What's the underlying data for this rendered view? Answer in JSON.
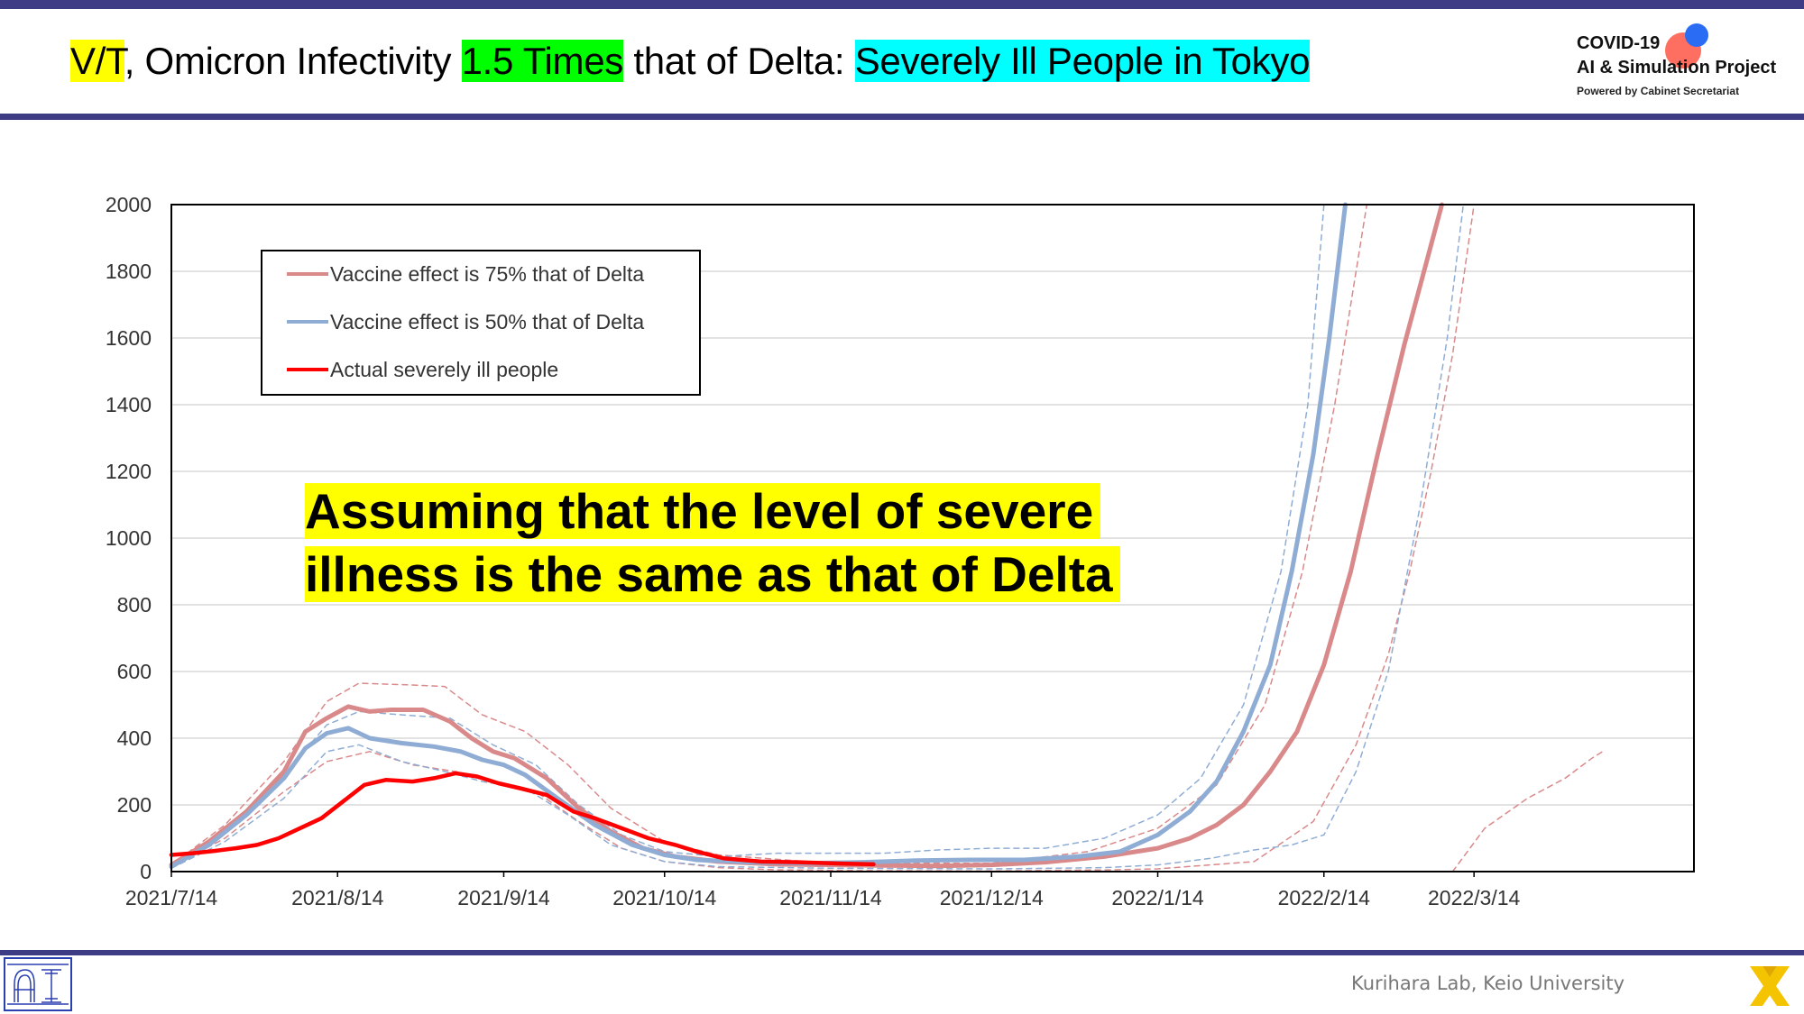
{
  "header": {
    "title_part1": "V/T",
    "title_part2": ", Omicron Infectivity ",
    "title_part3": "1.5 Times",
    "title_part4": " that of Delta: ",
    "title_part5": "Severely Ill People in Tokyo"
  },
  "logo": {
    "line1": "COVID-19",
    "line2": "AI & Simulation Project",
    "line3": "Powered by Cabinet Secretariat"
  },
  "footer": {
    "credit": "Kurihara Lab, Keio University"
  },
  "callout": {
    "line1": "Assuming that the level of severe",
    "line2": "illness is the same as that of Delta"
  },
  "colors": {
    "brand_band": "#3f3c86",
    "series_75": "#d9898a",
    "series_50": "#8fadd4",
    "series_actual": "#ff0000",
    "highlight_yellow": "#ffff00",
    "highlight_green": "#00ff00",
    "highlight_cyan": "#00ffff"
  },
  "chart_data": {
    "type": "line",
    "xlabel": "",
    "ylabel": "",
    "x_ticks": [
      "2021/7/14",
      "2021/8/14",
      "2021/9/14",
      "2021/10/14",
      "2021/11/14",
      "2021/12/14",
      "2022/1/14",
      "2022/2/14",
      "2022/3/14"
    ],
    "ylim": [
      0,
      2000
    ],
    "y_ticks": [
      0,
      200,
      400,
      600,
      800,
      1000,
      1200,
      1400,
      1600,
      1800,
      2000
    ],
    "grid": "horizontal",
    "legend_position": "top-left",
    "series": [
      {
        "name": "Vaccine effect is 75% that of Delta",
        "style": "solid",
        "points": [
          [
            "2021/7/14",
            20
          ],
          [
            "2021/7/21",
            90
          ],
          [
            "2021/7/28",
            180
          ],
          [
            "2021/8/4",
            300
          ],
          [
            "2021/8/8",
            420
          ],
          [
            "2021/8/12",
            460
          ],
          [
            "2021/8/16",
            495
          ],
          [
            "2021/8/20",
            480
          ],
          [
            "2021/8/24",
            485
          ],
          [
            "2021/8/30",
            485
          ],
          [
            "2021/9/4",
            450
          ],
          [
            "2021/9/8",
            400
          ],
          [
            "2021/9/12",
            360
          ],
          [
            "2021/9/16",
            340
          ],
          [
            "2021/9/22",
            280
          ],
          [
            "2021/9/28",
            190
          ],
          [
            "2021/10/4",
            120
          ],
          [
            "2021/10/10",
            70
          ],
          [
            "2021/10/16",
            45
          ],
          [
            "2021/10/24",
            30
          ],
          [
            "2021/11/4",
            22
          ],
          [
            "2021/11/14",
            20
          ],
          [
            "2021/11/24",
            18
          ],
          [
            "2021/12/4",
            17
          ],
          [
            "2021/12/14",
            20
          ],
          [
            "2021/12/24",
            28
          ],
          [
            "2022/1/4",
            45
          ],
          [
            "2022/1/14",
            70
          ],
          [
            "2022/1/20",
            100
          ],
          [
            "2022/1/25",
            140
          ],
          [
            "2022/1/30",
            200
          ],
          [
            "2022/2/4",
            300
          ],
          [
            "2022/2/9",
            420
          ],
          [
            "2022/2/14",
            620
          ],
          [
            "2022/2/19",
            900
          ],
          [
            "2022/2/24",
            1250
          ],
          [
            "2022/3/1",
            1580
          ],
          [
            "2022/3/5",
            1820
          ],
          [
            "2022/3/8",
            2000
          ]
        ]
      },
      {
        "name": "Vaccine effect is 50% that of Delta",
        "style": "solid",
        "points": [
          [
            "2021/7/14",
            15
          ],
          [
            "2021/7/21",
            80
          ],
          [
            "2021/7/28",
            170
          ],
          [
            "2021/8/4",
            280
          ],
          [
            "2021/8/8",
            370
          ],
          [
            "2021/8/12",
            415
          ],
          [
            "2021/8/16",
            430
          ],
          [
            "2021/8/20",
            400
          ],
          [
            "2021/8/26",
            385
          ],
          [
            "2021/9/1",
            375
          ],
          [
            "2021/9/6",
            360
          ],
          [
            "2021/9/10",
            335
          ],
          [
            "2021/9/14",
            320
          ],
          [
            "2021/9/18",
            290
          ],
          [
            "2021/9/24",
            220
          ],
          [
            "2021/10/1",
            140
          ],
          [
            "2021/10/8",
            80
          ],
          [
            "2021/10/14",
            50
          ],
          [
            "2021/10/20",
            35
          ],
          [
            "2021/10/30",
            28
          ],
          [
            "2021/11/10",
            25
          ],
          [
            "2021/11/20",
            28
          ],
          [
            "2021/11/30",
            33
          ],
          [
            "2021/12/10",
            35
          ],
          [
            "2021/12/20",
            35
          ],
          [
            "2021/12/30",
            45
          ],
          [
            "2022/1/7",
            60
          ],
          [
            "2022/1/14",
            110
          ],
          [
            "2022/1/20",
            180
          ],
          [
            "2022/1/25",
            270
          ],
          [
            "2022/1/30",
            420
          ],
          [
            "2022/2/4",
            620
          ],
          [
            "2022/2/8",
            900
          ],
          [
            "2022/2/12",
            1250
          ],
          [
            "2022/2/15",
            1600
          ],
          [
            "2022/2/18",
            2000
          ]
        ]
      },
      {
        "name": "Actual severely ill people",
        "style": "solid",
        "points": [
          [
            "2021/7/14",
            50
          ],
          [
            "2021/7/18",
            55
          ],
          [
            "2021/7/22",
            62
          ],
          [
            "2021/7/26",
            70
          ],
          [
            "2021/7/30",
            80
          ],
          [
            "2021/8/3",
            100
          ],
          [
            "2021/8/7",
            130
          ],
          [
            "2021/8/11",
            160
          ],
          [
            "2021/8/15",
            210
          ],
          [
            "2021/8/19",
            260
          ],
          [
            "2021/8/23",
            275
          ],
          [
            "2021/8/28",
            270
          ],
          [
            "2021/9/1",
            280
          ],
          [
            "2021/9/5",
            295
          ],
          [
            "2021/9/9",
            285
          ],
          [
            "2021/9/13",
            265
          ],
          [
            "2021/9/17",
            250
          ],
          [
            "2021/9/22",
            230
          ],
          [
            "2021/9/27",
            180
          ],
          [
            "2021/10/1",
            160
          ],
          [
            "2021/10/6",
            130
          ],
          [
            "2021/10/11",
            100
          ],
          [
            "2021/10/16",
            80
          ],
          [
            "2021/10/20",
            60
          ],
          [
            "2021/10/25",
            40
          ],
          [
            "2021/11/1",
            30
          ],
          [
            "2021/11/8",
            28
          ],
          [
            "2021/11/16",
            24
          ],
          [
            "2021/11/22",
            22
          ]
        ]
      },
      {
        "name": "",
        "style": "dashed",
        "points": [
          [
            "2021/7/14",
            20
          ],
          [
            "2021/7/24",
            140
          ],
          [
            "2021/8/4",
            330
          ],
          [
            "2021/8/12",
            510
          ],
          [
            "2021/8/18",
            565
          ],
          [
            "2021/8/27",
            560
          ],
          [
            "2021/9/3",
            555
          ],
          [
            "2021/9/10",
            470
          ],
          [
            "2021/9/18",
            420
          ],
          [
            "2021/9/26",
            320
          ],
          [
            "2021/10/4",
            190
          ],
          [
            "2021/10/14",
            90
          ],
          [
            "2021/10/24",
            50
          ],
          [
            "2021/11/14",
            25
          ],
          [
            "2021/12/14",
            25
          ],
          [
            "2022/1/1",
            60
          ],
          [
            "2022/1/14",
            130
          ],
          [
            "2022/1/25",
            260
          ],
          [
            "2022/2/3",
            500
          ],
          [
            "2022/2/10",
            900
          ],
          [
            "2022/2/16",
            1400
          ],
          [
            "2022/2/20",
            1800
          ],
          [
            "2022/2/22",
            2000
          ]
        ]
      },
      {
        "name": "",
        "style": "dashed",
        "points": [
          [
            "2021/7/14",
            15
          ],
          [
            "2021/7/24",
            100
          ],
          [
            "2021/8/4",
            240
          ],
          [
            "2021/8/12",
            330
          ],
          [
            "2021/8/20",
            360
          ],
          [
            "2021/8/28",
            320
          ],
          [
            "2021/9/5",
            300
          ],
          [
            "2021/9/12",
            270
          ],
          [
            "2021/9/20",
            240
          ],
          [
            "2021/9/28",
            150
          ],
          [
            "2021/10/6",
            70
          ],
          [
            "2021/10/14",
            30
          ],
          [
            "2021/10/24",
            12
          ],
          [
            "2021/11/4",
            5
          ],
          [
            "2021/11/20",
            3
          ],
          [
            "2021/12/14",
            2
          ],
          [
            "2022/1/5",
            5
          ],
          [
            "2022/1/14",
            8
          ],
          [
            "2022/2/1",
            30
          ],
          [
            "2022/2/12",
            150
          ],
          [
            "2022/2/20",
            380
          ],
          [
            "2022/2/26",
            650
          ],
          [
            "2022/3/2",
            900
          ],
          [
            "2022/3/6",
            1200
          ],
          [
            "2022/3/10",
            1550
          ],
          [
            "2022/3/14",
            2000
          ]
        ]
      },
      {
        "name": "",
        "style": "dashed",
        "points": [
          [
            "2021/7/14",
            15
          ],
          [
            "2021/7/24",
            120
          ],
          [
            "2021/8/4",
            290
          ],
          [
            "2021/8/12",
            440
          ],
          [
            "2021/8/18",
            480
          ],
          [
            "2021/8/26",
            470
          ],
          [
            "2021/9/4",
            460
          ],
          [
            "2021/9/12",
            380
          ],
          [
            "2021/9/20",
            320
          ],
          [
            "2021/9/28",
            200
          ],
          [
            "2021/10/6",
            110
          ],
          [
            "2021/10/14",
            60
          ],
          [
            "2021/10/24",
            45
          ],
          [
            "2021/11/4",
            55
          ],
          [
            "2021/11/14",
            55
          ],
          [
            "2021/11/24",
            55
          ],
          [
            "2021/12/4",
            65
          ],
          [
            "2021/12/14",
            70
          ],
          [
            "2021/12/24",
            70
          ],
          [
            "2022/1/4",
            100
          ],
          [
            "2022/1/14",
            170
          ],
          [
            "2022/1/22",
            280
          ],
          [
            "2022/1/30",
            500
          ],
          [
            "2022/2/6",
            900
          ],
          [
            "2022/2/11",
            1400
          ],
          [
            "2022/2/14",
            2000
          ]
        ]
      },
      {
        "name": "",
        "style": "dashed",
        "points": [
          [
            "2021/7/14",
            10
          ],
          [
            "2021/7/24",
            90
          ],
          [
            "2021/8/4",
            220
          ],
          [
            "2021/8/12",
            360
          ],
          [
            "2021/8/18",
            380
          ],
          [
            "2021/8/26",
            330
          ],
          [
            "2021/9/3",
            300
          ],
          [
            "2021/9/10",
            270
          ],
          [
            "2021/9/18",
            250
          ],
          [
            "2021/9/26",
            170
          ],
          [
            "2021/10/4",
            80
          ],
          [
            "2021/10/14",
            30
          ],
          [
            "2021/10/24",
            15
          ],
          [
            "2021/11/14",
            10
          ],
          [
            "2021/12/14",
            8
          ],
          [
            "2022/1/4",
            12
          ],
          [
            "2022/1/14",
            20
          ],
          [
            "2022/1/24",
            40
          ],
          [
            "2022/2/1",
            65
          ],
          [
            "2022/2/8",
            80
          ],
          [
            "2022/2/14",
            110
          ],
          [
            "2022/2/20",
            300
          ],
          [
            "2022/2/26",
            600
          ],
          [
            "2022/3/4",
            1100
          ],
          [
            "2022/3/9",
            1600
          ],
          [
            "2022/3/12",
            2000
          ]
        ]
      },
      {
        "name": "",
        "style": "dashed",
        "points": [
          [
            "2022/3/10",
            0
          ],
          [
            "2022/3/16",
            130
          ],
          [
            "2022/3/24",
            220
          ],
          [
            "2022/3/31",
            280
          ],
          [
            "2022/4/5",
            340
          ],
          [
            "2022/4/7",
            360
          ]
        ]
      }
    ]
  }
}
